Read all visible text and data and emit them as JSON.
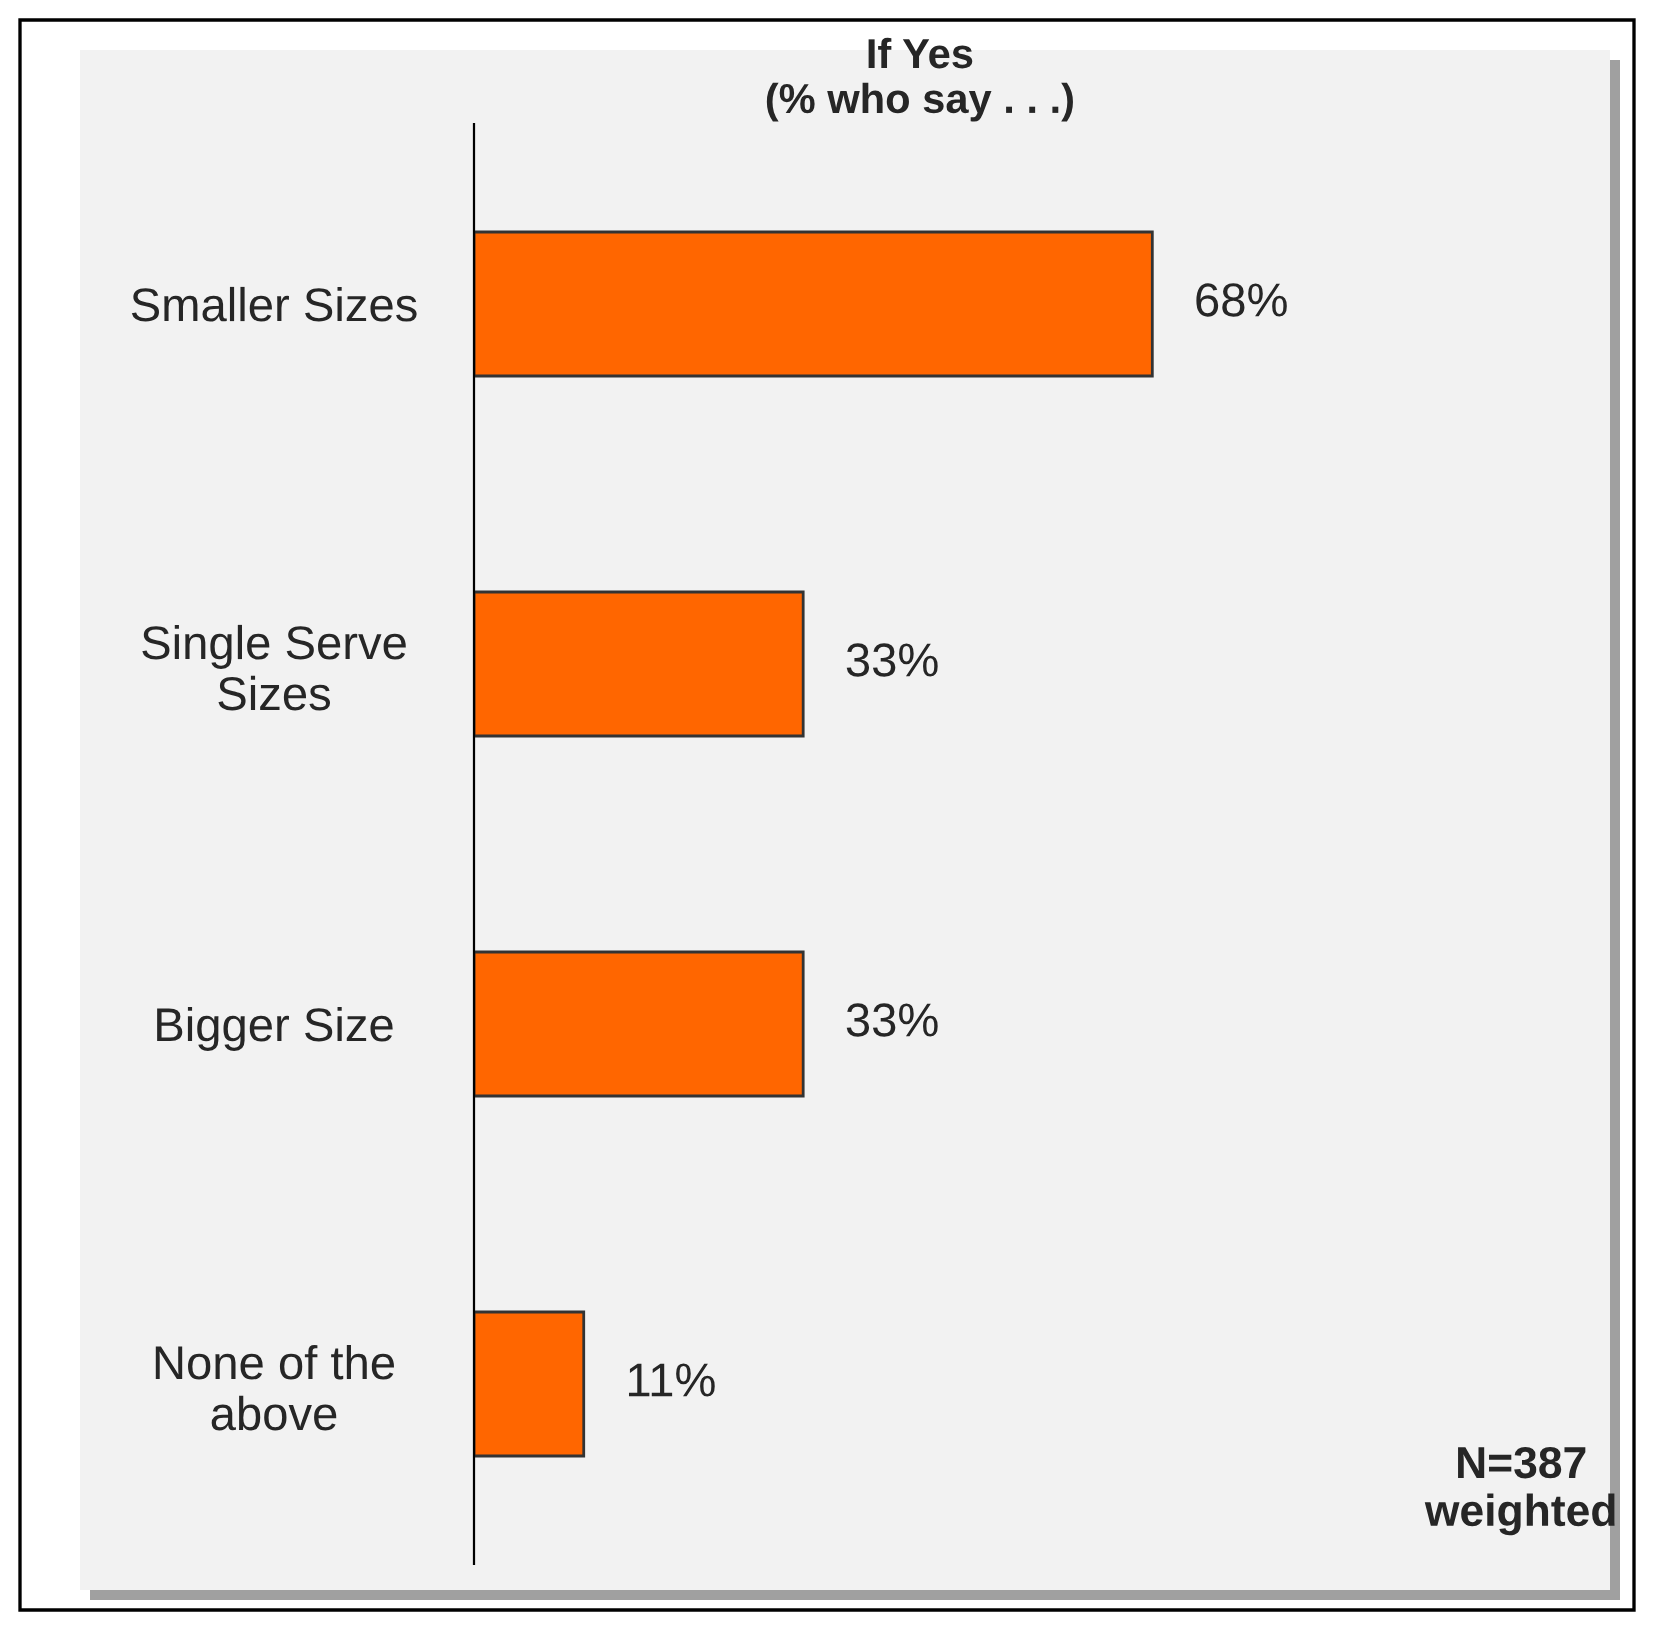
{
  "chart_data": {
    "type": "bar",
    "orientation": "horizontal",
    "title": "If Yes\n(% who say . . .)",
    "categories": [
      "Smaller Sizes",
      "Single Serve\nSizes",
      "Bigger Size",
      "None of the\nabove"
    ],
    "values": [
      68,
      33,
      33,
      11
    ],
    "color": "#ff6600",
    "value_labels": [
      "68%",
      "33%",
      "33%",
      "11%"
    ],
    "annotations": [
      "N=387\nweighted"
    ],
    "grid": false,
    "legend": false
  }
}
